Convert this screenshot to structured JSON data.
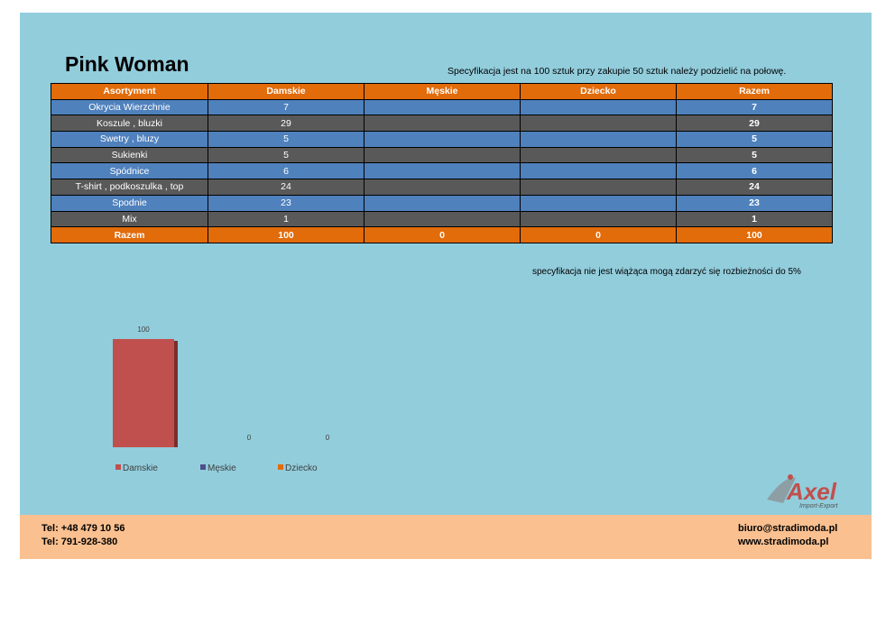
{
  "header": {
    "title": "Pink Woman",
    "spec_text": "Specyfikacja jest na 100 sztuk przy zakupie 50 sztuk należy podzielić na połowę."
  },
  "table": {
    "columns": [
      "Asortyment",
      "Damskie",
      "Męskie",
      "Dziecko",
      "Razem"
    ],
    "rows": [
      {
        "label": "Okrycia Wierzchnie",
        "damskie": "7",
        "meskie": "",
        "dziecko": "",
        "razem": "7"
      },
      {
        "label": "Koszule , bluzki",
        "damskie": "29",
        "meskie": "",
        "dziecko": "",
        "razem": "29"
      },
      {
        "label": "Swetry , bluzy",
        "damskie": "5",
        "meskie": "",
        "dziecko": "",
        "razem": "5"
      },
      {
        "label": "Sukienki",
        "damskie": "5",
        "meskie": "",
        "dziecko": "",
        "razem": "5"
      },
      {
        "label": "Spódnice",
        "damskie": "6",
        "meskie": "",
        "dziecko": "",
        "razem": "6"
      },
      {
        "label": "T-shirt , podkoszulka , top",
        "damskie": "24",
        "meskie": "",
        "dziecko": "",
        "razem": "24"
      },
      {
        "label": "Spodnie",
        "damskie": "23",
        "meskie": "",
        "dziecko": "",
        "razem": "23"
      },
      {
        "label": "Mix",
        "damskie": "1",
        "meskie": "",
        "dziecko": "",
        "razem": "1"
      }
    ],
    "total": {
      "label": "Razem",
      "damskie": "100",
      "meskie": "0",
      "dziecko": "0",
      "razem": "100"
    }
  },
  "note": "specyfikacja nie jest wiążąca mogą zdarzyć się rozbieżności do 5%",
  "chart_data": {
    "type": "bar",
    "categories": [
      "Damskie",
      "Męskie",
      "Dziecko"
    ],
    "values": [
      100,
      0,
      0
    ],
    "data_labels": [
      "100",
      "0",
      "0"
    ],
    "colors": [
      "#c0504d",
      "#4f4e8c",
      "#e26b0a"
    ],
    "title": "",
    "xlabel": "",
    "ylabel": "",
    "ylim": [
      0,
      100
    ],
    "grid": false,
    "legend": "bottom"
  },
  "logo": {
    "text": "Axel",
    "subtext": "Import-Export",
    "color": "#c0504d"
  },
  "footer": {
    "phone1": "Tel: +48 479 10 56",
    "phone2": "Tel: 791-928-380",
    "email": "biuro@stradimoda.pl",
    "website": "www.stradimoda.pl"
  },
  "colors": {
    "panel": "#92cddc",
    "footer": "#fac090",
    "header_row": "#e26b0a",
    "row_blue": "#4f81bd",
    "row_gray": "#595959"
  }
}
